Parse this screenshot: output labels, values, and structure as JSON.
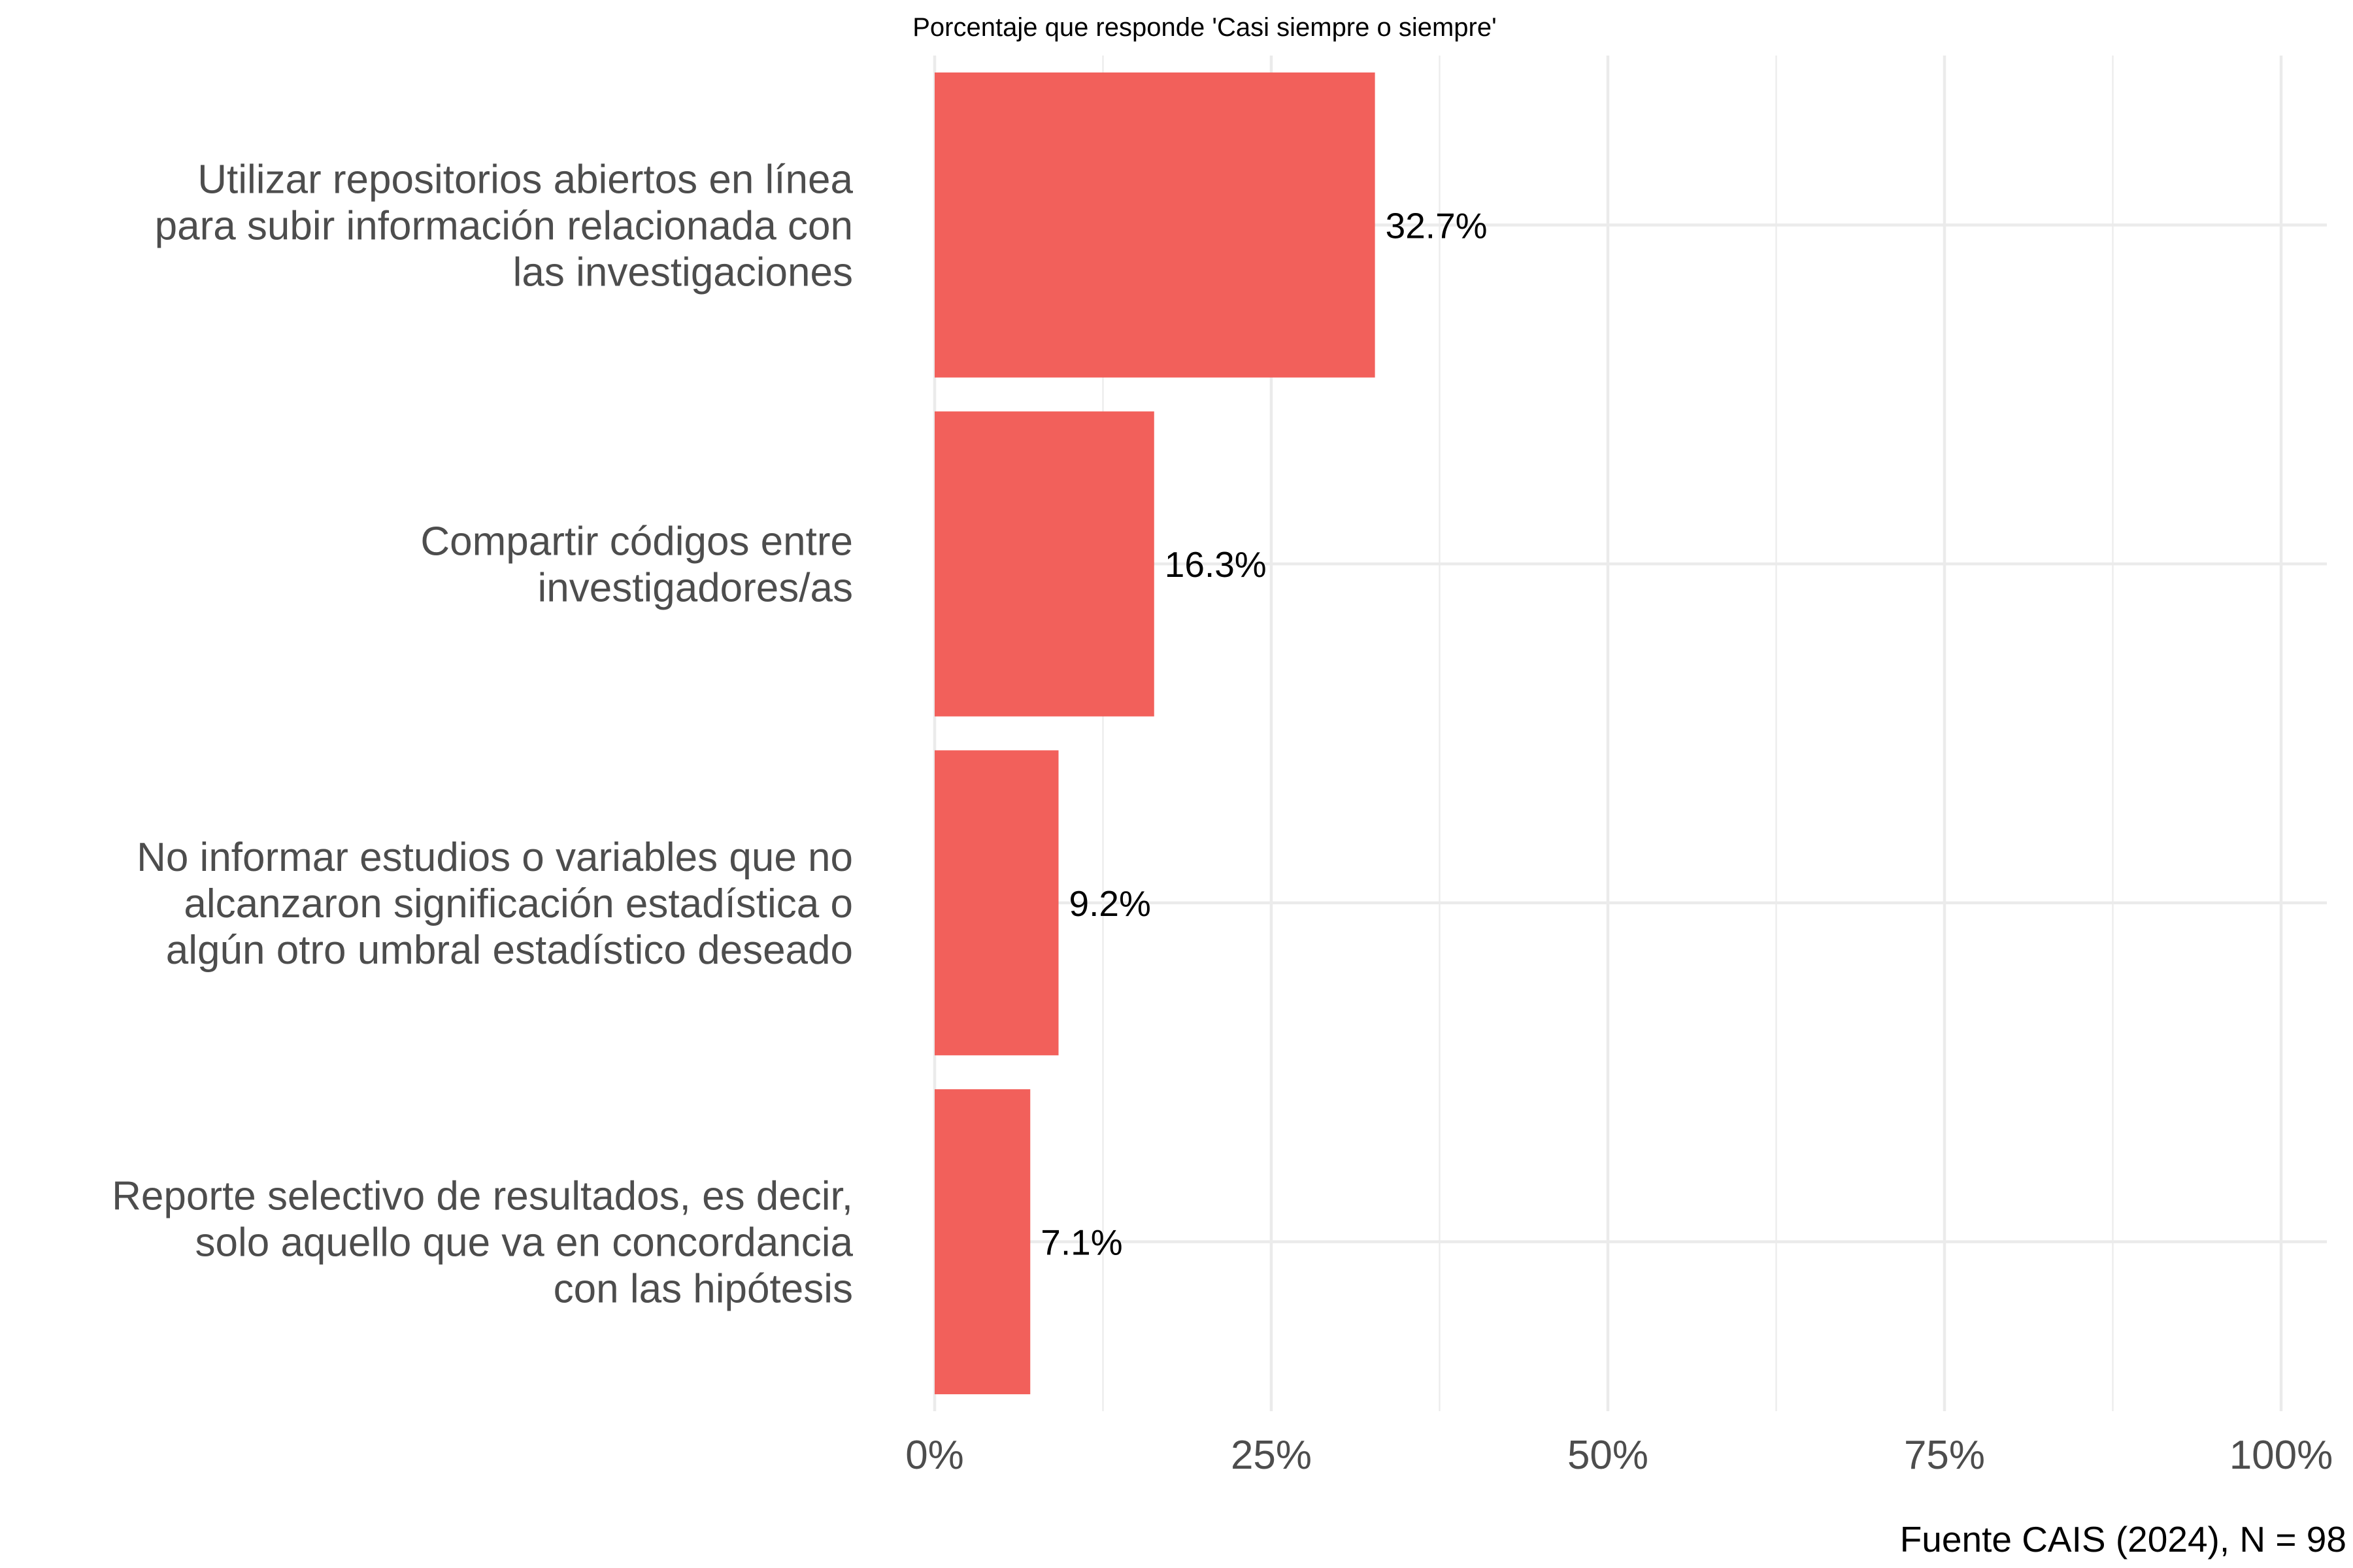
{
  "chart_data": {
    "type": "bar",
    "orientation": "horizontal",
    "subtitle": "Porcentaje que responde 'Casi siempre o siempre'",
    "caption": "Fuente CAIS (2024), N = 98",
    "categories": [
      [
        "Utilizar repositorios abiertos en línea",
        "para subir información relacionada con",
        "las investigaciones"
      ],
      [
        "Compartir códigos entre",
        "investigadores/as"
      ],
      [
        "No informar estudios o variables que no",
        "alcanzaron significación estadística o",
        "algún otro umbral estadístico deseado"
      ],
      [
        "Reporte selectivo de resultados, es decir,",
        "solo aquello que va en concordancia",
        "con las hipótesis"
      ]
    ],
    "values": [
      32.7,
      16.3,
      9.2,
      7.1
    ],
    "value_labels": [
      "32.7%",
      "16.3%",
      "9.2%",
      "7.1%"
    ],
    "xlim": [
      0,
      100
    ],
    "x_ticks": [
      0,
      25,
      50,
      75,
      100
    ],
    "x_tick_labels": [
      "0%",
      "25%",
      "50%",
      "75%",
      "100%"
    ],
    "bar_color": "#f2605b",
    "grid": true
  }
}
